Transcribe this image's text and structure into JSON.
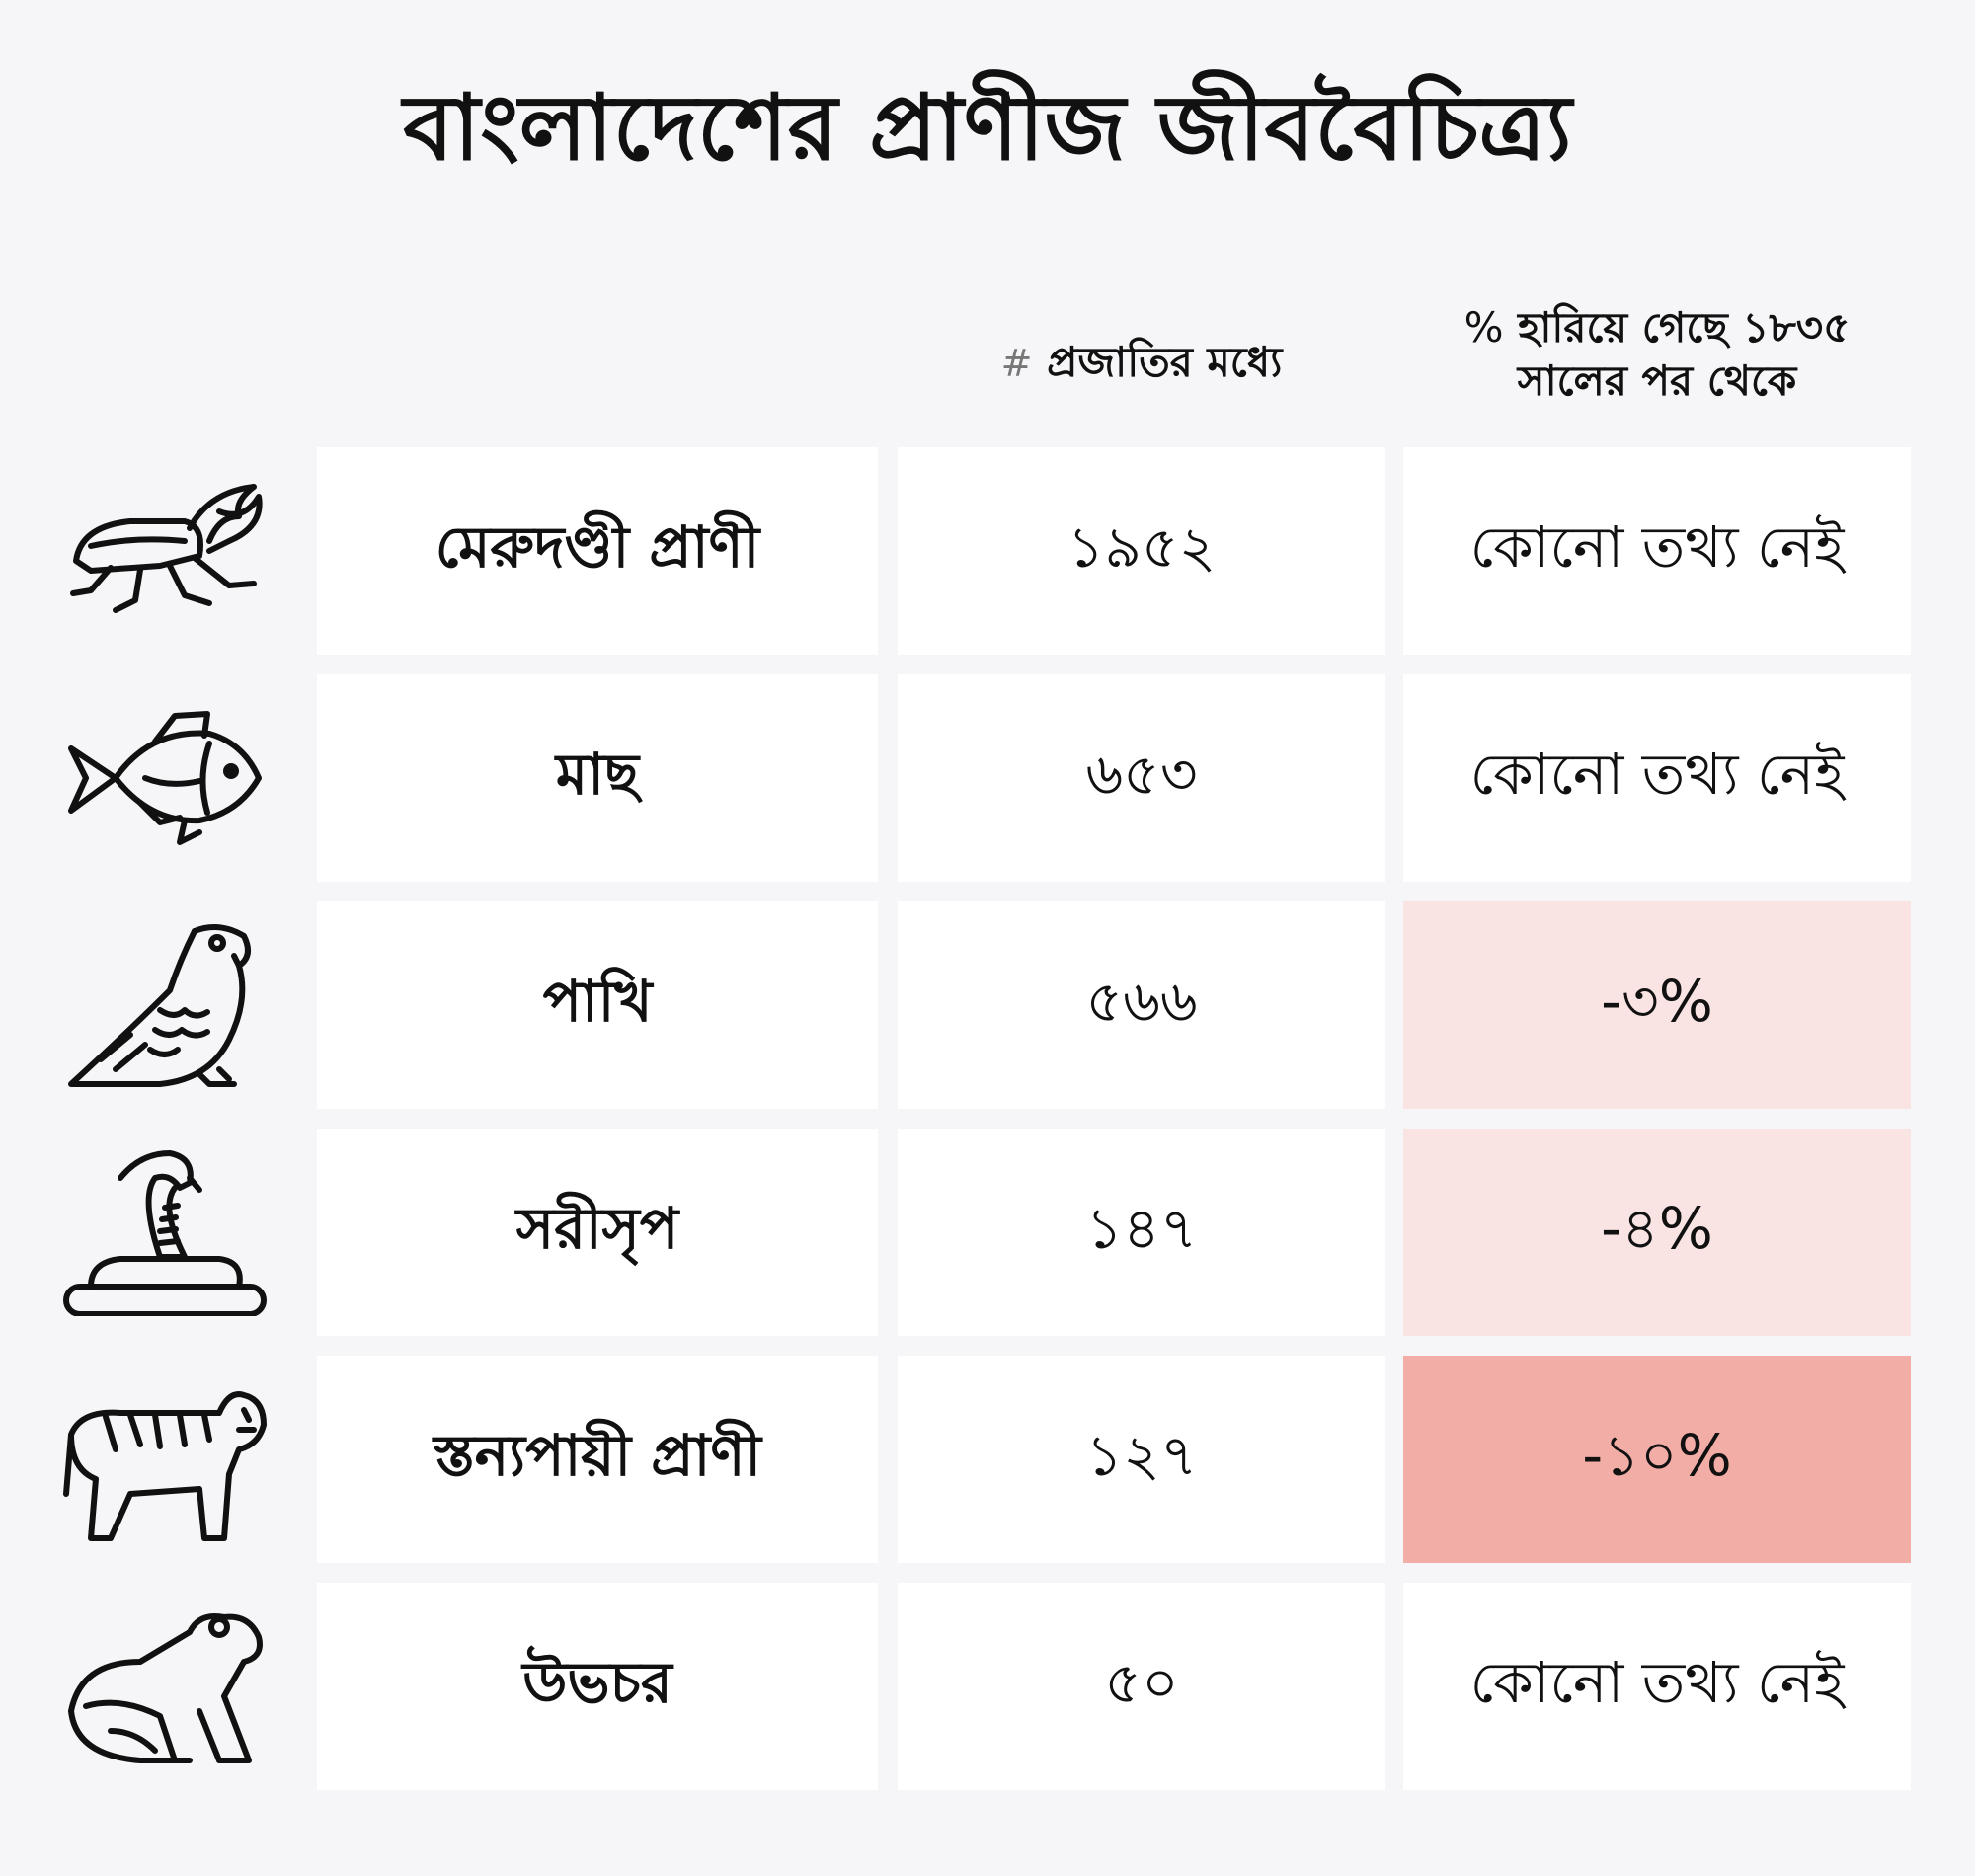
{
  "title": "বাংলাদেশের প্রাণীজ জীববৈচিত্র্য",
  "headers": {
    "count_symbol": "#",
    "count_label": "প্রজাতির মধ্যে",
    "loss_symbol": "%",
    "loss_line1": "হারিয়ে গেছে ১৮৩৫",
    "loss_line2": "সালের পর থেকে"
  },
  "colors": {
    "background": "#f6f6f8",
    "cell": "#ffffff",
    "loss_light": "#f9e3e3",
    "loss_strong": "#f2ada6"
  },
  "chart_data": {
    "type": "table",
    "title": "বাংলাদেশের প্রাণীজ জীববৈচিত্র্য",
    "columns": [
      "",
      "# প্রজাতির মধ্যে",
      "% হারিয়ে গেছে ১৮৩৫ সালের পর থেকে"
    ],
    "rows": [
      {
        "icon": "beetle-icon",
        "name": "মেরুদণ্ডী প্রাণী",
        "count": "১৯৫২",
        "loss": "কোনো তথ্য নেই",
        "loss_value": null
      },
      {
        "icon": "fish-icon",
        "name": "মাছ",
        "count": "৬৫৩",
        "loss": "কোনো তথ্য নেই",
        "loss_value": null
      },
      {
        "icon": "parrot-icon",
        "name": "পাখি",
        "count": "৫৬৬",
        "loss": "-৩%",
        "loss_value": -3
      },
      {
        "icon": "cobra-icon",
        "name": "সরীসৃপ",
        "count": "১৪৭",
        "loss": "-৪%",
        "loss_value": -4
      },
      {
        "icon": "tiger-icon",
        "name": "স্তন্যপায়ী প্রাণী",
        "count": "১২৭",
        "loss": "-১০%",
        "loss_value": -10
      },
      {
        "icon": "frog-icon",
        "name": "উভচর",
        "count": "৫০",
        "loss": "কোনো তথ্য নেই",
        "loss_value": null
      }
    ]
  }
}
